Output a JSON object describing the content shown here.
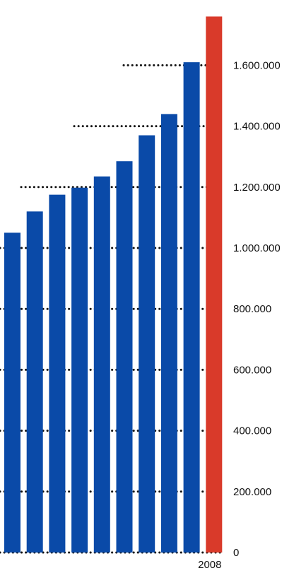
{
  "chart_data": {
    "type": "bar",
    "categories": [
      "",
      "",
      "",
      "",
      "",
      "",
      "",
      "",
      "",
      "2008"
    ],
    "series": [
      {
        "values": [
          1050000,
          1120000,
          1175000,
          1198000,
          1235000,
          1285000,
          1370000,
          1440000,
          1610000,
          1760000
        ],
        "colors": [
          "#0a4aa8",
          "#0a4aa8",
          "#0a4aa8",
          "#0a4aa8",
          "#0a4aa8",
          "#0a4aa8",
          "#0a4aa8",
          "#0a4aa8",
          "#0a4aa8",
          "#d93a2a"
        ]
      }
    ],
    "y_ticks": [
      {
        "value": 0,
        "label": "0"
      },
      {
        "value": 200000,
        "label": "200.000"
      },
      {
        "value": 400000,
        "label": "400.000"
      },
      {
        "value": 600000,
        "label": "600.000"
      },
      {
        "value": 800000,
        "label": "800.000"
      },
      {
        "value": 1000000,
        "label": "1.000.000"
      },
      {
        "value": 1200000,
        "label": "1.200.000"
      },
      {
        "value": 1400000,
        "label": "1.400.000"
      },
      {
        "value": 1600000,
        "label": "1.600.000"
      }
    ],
    "ylim": [
      0,
      1800000
    ],
    "x_tick_labels": [
      "2008"
    ],
    "axis_position": "right",
    "grid": "dotted",
    "title": "",
    "xlabel": "",
    "ylabel": ""
  }
}
